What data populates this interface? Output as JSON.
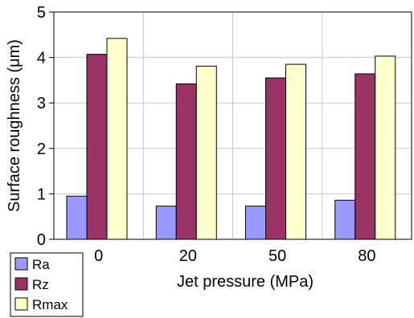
{
  "chart_data": {
    "type": "bar",
    "categories": [
      "0",
      "20",
      "50",
      "80"
    ],
    "series": [
      {
        "name": "Ra",
        "values": [
          0.95,
          0.73,
          0.73,
          0.86
        ],
        "color": "#9999ff"
      },
      {
        "name": "Rz",
        "values": [
          4.07,
          3.42,
          3.55,
          3.64
        ],
        "color": "#993366"
      },
      {
        "name": "Rmax",
        "values": [
          4.42,
          3.81,
          3.85,
          4.03
        ],
        "color": "#ffffcc"
      }
    ],
    "xlabel": "Jet pressure (MPa)",
    "ylabel": "Surface roughness (μm)",
    "ylim": [
      0,
      5
    ],
    "yticks": [
      "0",
      "1",
      "2",
      "3",
      "4",
      "5"
    ],
    "grid": true,
    "legend": "bottom-left"
  }
}
